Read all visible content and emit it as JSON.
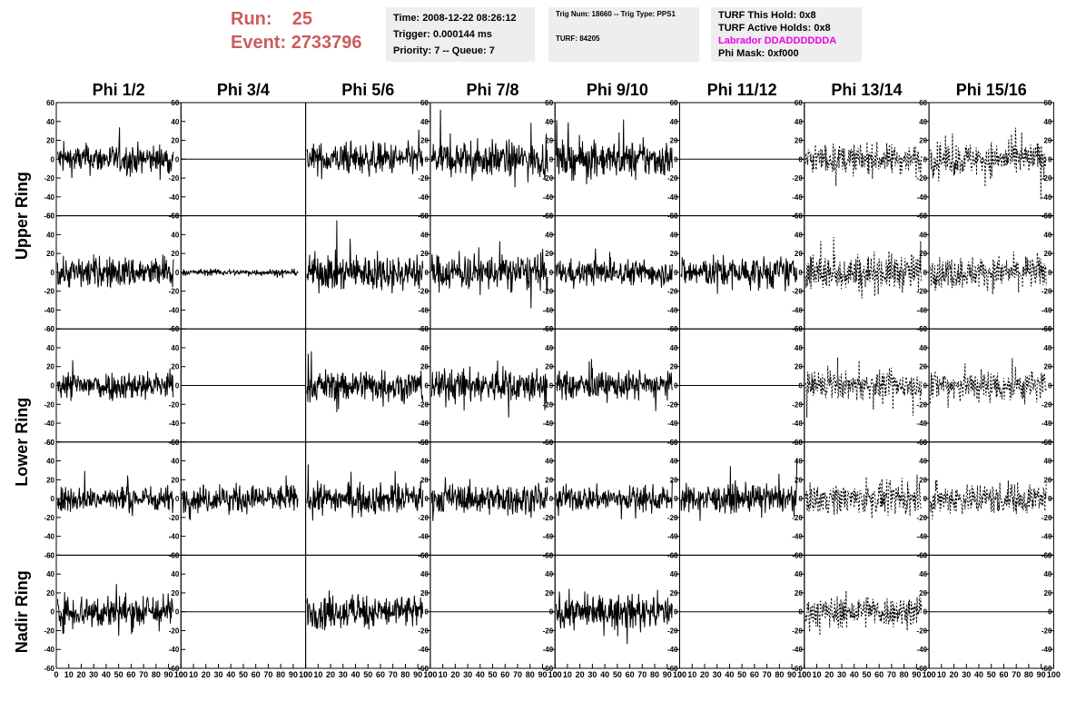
{
  "header": {
    "run_label": "Run:",
    "run_value": "25",
    "event_label": "Event:",
    "event_value": "2733796"
  },
  "time_box": {
    "time": "Time: 2008-12-22 08:26:12",
    "trigger": "Trigger: 0.000144 ms",
    "priority": "Priority: 7 -- Queue: 7"
  },
  "trig_box": {
    "trig": "Trig Num: 18660 -- Trig Type: PPS1",
    "turf": "TURF: 84205"
  },
  "turf_box": {
    "this_hold": "TURF This Hold: 0x8",
    "active_holds": "TURF Active Holds: 0x8",
    "labrador": "Labrador DDADDDDDDA",
    "phi_mask": "Phi Mask: 0xf000",
    "labrador_color": "#ee00ee"
  },
  "run_color": "#cc5c5c",
  "chart_data": {
    "type": "line",
    "columns": [
      "Phi 1/2",
      "Phi 3/4",
      "Phi 5/6",
      "Phi 7/8",
      "Phi 9/10",
      "Phi 11/12",
      "Phi 13/14",
      "Phi 15/16"
    ],
    "ring_labels": [
      "Upper Ring",
      "Lower Ring",
      "Nadir Ring"
    ],
    "xlim": [
      0,
      100
    ],
    "ylim": [
      -60,
      60
    ],
    "yticks": [
      "60",
      "40",
      "20",
      "0",
      "-20",
      "-40",
      "-60"
    ],
    "xticks": [
      "0",
      "10",
      "20",
      "30",
      "40",
      "50",
      "60",
      "70",
      "80",
      "90",
      "100"
    ],
    "panels": [
      [
        {
          "s": "wave",
          "a": 14
        },
        {
          "s": "flat"
        },
        {
          "s": "wave",
          "a": 15
        },
        {
          "s": "wave",
          "a": 17
        },
        {
          "s": "wave",
          "a": 17
        },
        {
          "s": "flat"
        },
        {
          "s": "dash",
          "a": 14
        },
        {
          "s": "dash",
          "a": 16
        }
      ],
      [
        {
          "s": "wave",
          "a": 15
        },
        {
          "s": "small",
          "a": 3
        },
        {
          "s": "wave",
          "a": 17
        },
        {
          "s": "wave",
          "a": 17
        },
        {
          "s": "wave",
          "a": 12
        },
        {
          "s": "wave",
          "a": 15
        },
        {
          "s": "dash",
          "a": 18
        },
        {
          "s": "dash",
          "a": 15
        }
      ],
      [
        {
          "s": "wave",
          "a": 14
        },
        {
          "s": "flat"
        },
        {
          "s": "wave",
          "a": 15
        },
        {
          "s": "wave",
          "a": 16
        },
        {
          "s": "wave",
          "a": 13
        },
        {
          "s": "flat"
        },
        {
          "s": "dash",
          "a": 13
        },
        {
          "s": "dash",
          "a": 16
        }
      ],
      [
        {
          "s": "wave",
          "a": 12
        },
        {
          "s": "wave",
          "a": 13
        },
        {
          "s": "wave",
          "a": 14
        },
        {
          "s": "wave",
          "a": 14
        },
        {
          "s": "wave",
          "a": 12
        },
        {
          "s": "wave",
          "a": 13
        },
        {
          "s": "dash",
          "a": 14
        },
        {
          "s": "dash",
          "a": 15
        }
      ],
      [
        {
          "s": "wave",
          "a": 17
        },
        {
          "s": "flat"
        },
        {
          "s": "wave",
          "a": 16
        },
        {
          "s": "flat"
        },
        {
          "s": "wave",
          "a": 15
        },
        {
          "s": "flat"
        },
        {
          "s": "dash",
          "a": 15
        },
        {
          "s": "flat"
        }
      ]
    ]
  }
}
